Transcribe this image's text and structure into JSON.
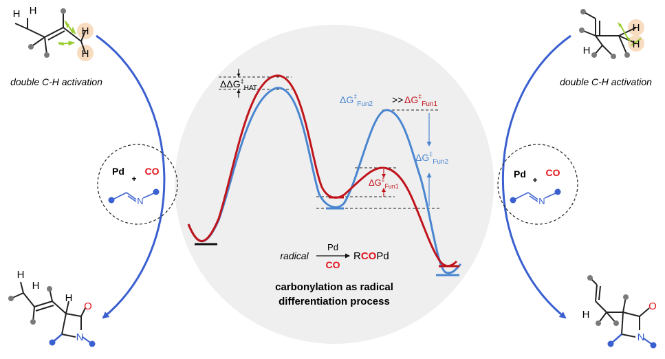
{
  "colors": {
    "red": "#c0141c",
    "blue": "#4a86d0",
    "arrow_blue": "#3a5fcf",
    "atom_grey": "#7a7a7a",
    "green": "#9acd32",
    "highlight": "#f8dcc0",
    "bg_circle": "#efefef"
  },
  "left_panel": {
    "caption": "double C-H activation",
    "catalyst": {
      "metal": "Pd",
      "plus": "+",
      "co": "CO",
      "n_label": "N"
    },
    "product": {
      "h1": "H",
      "h2": "H",
      "h3": "H",
      "o": "O",
      "n": "N"
    },
    "substrate": {
      "h1": "H",
      "h2": "H",
      "h3": "H",
      "h4": "H"
    }
  },
  "right_panel": {
    "caption": "double C-H activation",
    "catalyst": {
      "metal": "Pd",
      "plus": "+",
      "co": "CO",
      "n_label": "N"
    },
    "product": {
      "h1": "H",
      "o": "O",
      "n": "N"
    },
    "substrate": {
      "h1": "H",
      "h2": "H",
      "h3": "H"
    }
  },
  "energy_diagram": {
    "ddg_hat": {
      "prefix": "ΔΔG",
      "sup": "‡",
      "sub": "HAT"
    },
    "comparison": {
      "left": {
        "prefix": "ΔG",
        "sup": "‡",
        "sub": "Fun2"
      },
      "operator": ">>",
      "right": {
        "prefix": "ΔG",
        "sup": "‡",
        "sub": "Fun1"
      }
    },
    "dg_fun2": {
      "prefix": "ΔG",
      "sup": "‡",
      "sub": "Fun2"
    },
    "dg_fun1": {
      "prefix": "ΔG",
      "sup": "‡",
      "sub": "Fun1"
    }
  },
  "reaction": {
    "reactant": "radical",
    "above_arrow": "Pd",
    "below_arrow": "CO",
    "product_r": "R",
    "product_co": "CO",
    "product_pd": "Pd"
  },
  "conclusion": {
    "line1": "carbonylation as radical",
    "line2": "differentiation process"
  }
}
